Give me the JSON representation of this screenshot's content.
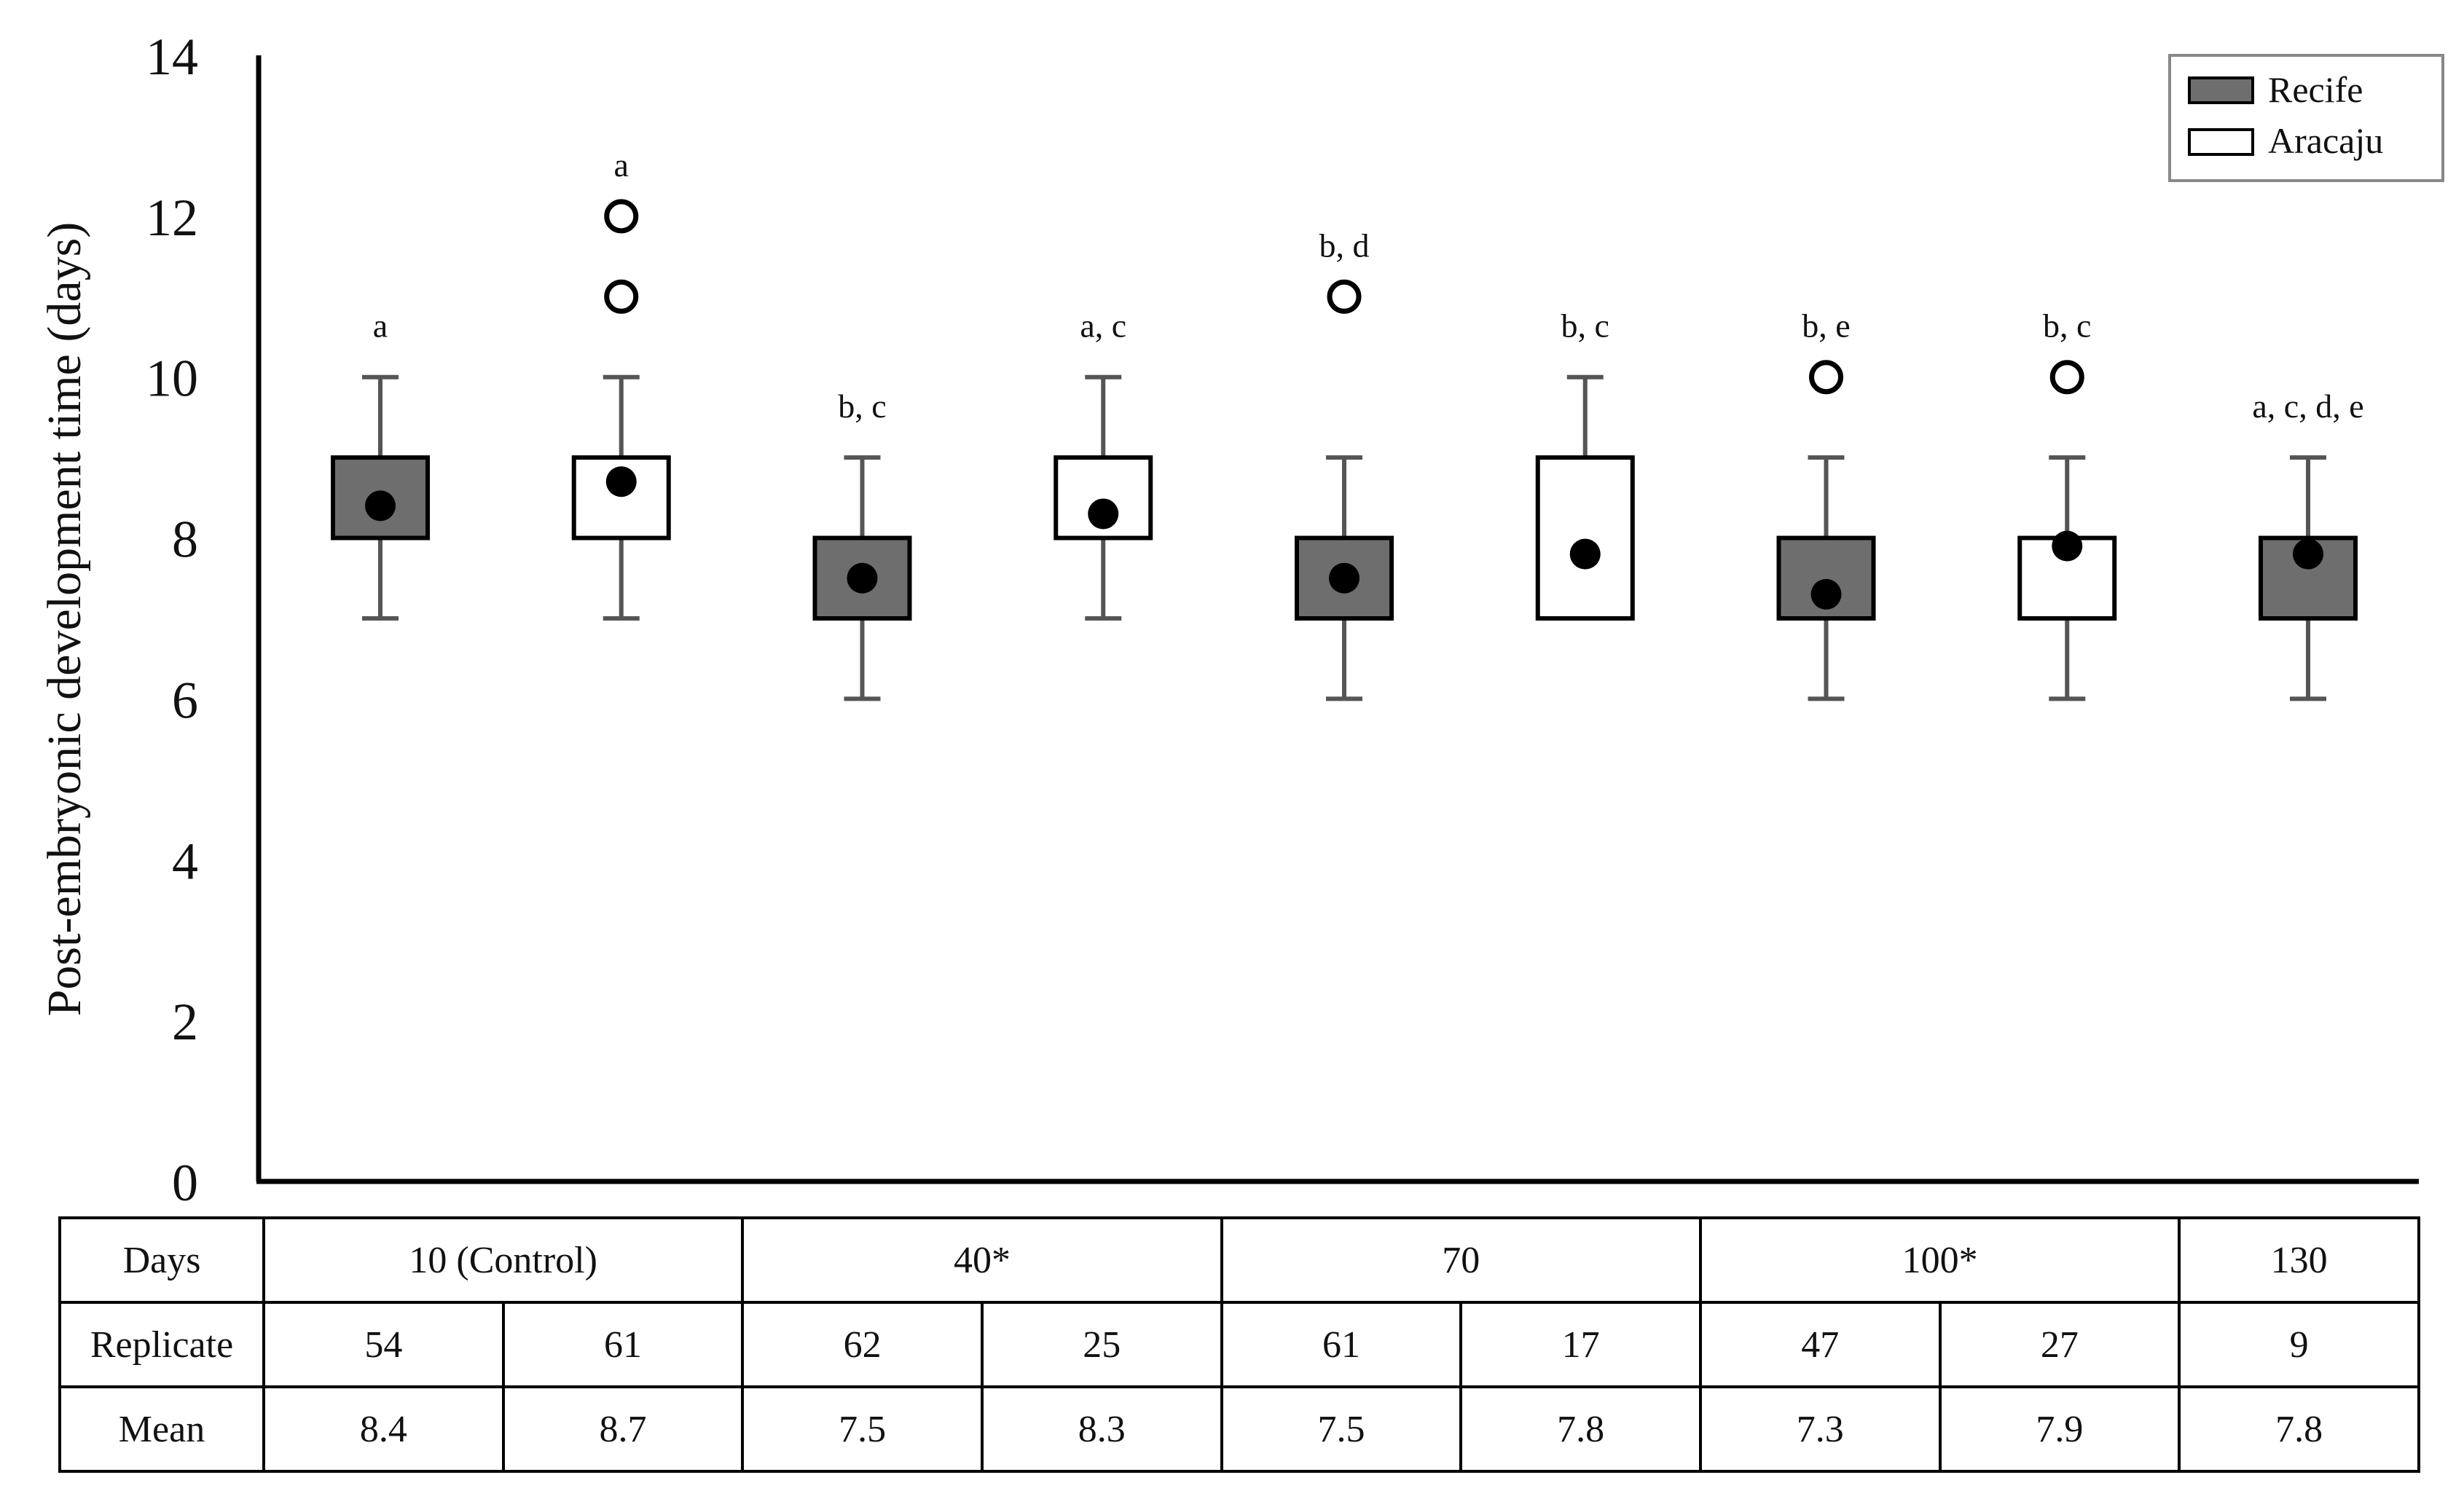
{
  "chart_data": {
    "type": "boxplot",
    "ylabel": "Post-embryonic development time (days)",
    "xlabel": "",
    "ylim": [
      0,
      14
    ],
    "yticks": [
      0,
      2,
      4,
      6,
      8,
      10,
      12,
      14
    ],
    "grid": false,
    "legend_position": "top-right",
    "series": [
      {
        "name": "Recife",
        "color": "#6e6e6e"
      },
      {
        "name": "Aracaju",
        "color": "#ffffff"
      }
    ],
    "boxes": [
      {
        "days": "10 (Control)",
        "series": "Recife",
        "whisker_low": 7,
        "q1": 8,
        "q3": 9,
        "whisker_high": 10,
        "mean": 8.4,
        "outliers": [],
        "letters": "a"
      },
      {
        "days": "10 (Control)",
        "series": "Aracaju",
        "whisker_low": 7,
        "q1": 8,
        "q3": 9,
        "whisker_high": 10,
        "mean": 8.7,
        "outliers": [
          11,
          12
        ],
        "letters": "a"
      },
      {
        "days": "40*",
        "series": "Recife",
        "whisker_low": 6,
        "q1": 7,
        "q3": 8,
        "whisker_high": 9,
        "mean": 7.5,
        "outliers": [],
        "letters": "b, c"
      },
      {
        "days": "40*",
        "series": "Aracaju",
        "whisker_low": 7,
        "q1": 8,
        "q3": 9,
        "whisker_high": 10,
        "mean": 8.3,
        "outliers": [],
        "letters": "a, c"
      },
      {
        "days": "70",
        "series": "Recife",
        "whisker_low": 6,
        "q1": 7,
        "q3": 8,
        "whisker_high": 9,
        "mean": 7.5,
        "outliers": [
          11
        ],
        "letters": "b, d"
      },
      {
        "days": "70",
        "series": "Aracaju",
        "whisker_low": 7,
        "q1": 7,
        "q3": 9,
        "whisker_high": 10,
        "mean": 7.8,
        "outliers": [],
        "letters": "b, c"
      },
      {
        "days": "100*",
        "series": "Recife",
        "whisker_low": 6,
        "q1": 7,
        "q3": 8,
        "whisker_high": 9,
        "mean": 7.3,
        "outliers": [
          10
        ],
        "letters": "b, e"
      },
      {
        "days": "100*",
        "series": "Aracaju",
        "whisker_low": 6,
        "q1": 7,
        "q3": 8,
        "whisker_high": 9,
        "mean": 7.9,
        "outliers": [
          10
        ],
        "letters": "b, c"
      },
      {
        "days": "130",
        "series": "Recife",
        "whisker_low": 6,
        "q1": 7,
        "q3": 8,
        "whisker_high": 9,
        "mean": 7.8,
        "outliers": [],
        "letters": "a, c, d, e"
      }
    ]
  },
  "table": {
    "rows": [
      {
        "label": "Days",
        "cells": [
          {
            "text": "10 (Control)",
            "span": 2
          },
          {
            "text": "40*",
            "span": 2
          },
          {
            "text": "70",
            "span": 2
          },
          {
            "text": "100*",
            "span": 2
          },
          {
            "text": "130",
            "span": 1
          }
        ]
      },
      {
        "label": "Replicate",
        "cells": [
          {
            "text": "54"
          },
          {
            "text": "61"
          },
          {
            "text": "62"
          },
          {
            "text": "25"
          },
          {
            "text": "61"
          },
          {
            "text": "17"
          },
          {
            "text": "47"
          },
          {
            "text": "27"
          },
          {
            "text": "9"
          }
        ]
      },
      {
        "label": "Mean",
        "cells": [
          {
            "text": "8.4"
          },
          {
            "text": "8.7"
          },
          {
            "text": "7.5"
          },
          {
            "text": "8.3"
          },
          {
            "text": "7.5"
          },
          {
            "text": "7.8"
          },
          {
            "text": "7.3"
          },
          {
            "text": "7.9"
          },
          {
            "text": "7.8"
          }
        ]
      }
    ]
  }
}
